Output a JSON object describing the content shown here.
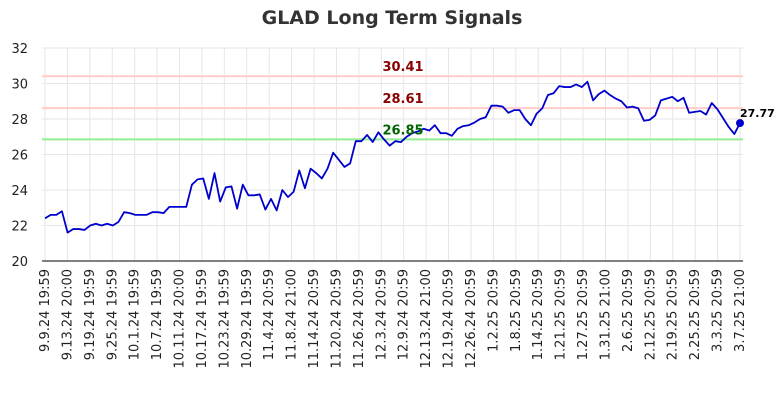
{
  "chart_data": {
    "type": "line",
    "title": "GLAD Long Term Signals",
    "xlabel": "",
    "ylabel": "",
    "ylim": [
      20,
      32
    ],
    "yticks": [
      20,
      22,
      24,
      26,
      28,
      30,
      32
    ],
    "grid": true,
    "x_tick_labels": [
      "9.9.24 19:59",
      "9.13.24 20:00",
      "9.19.24 19:59",
      "9.25.24 19:59",
      "10.1.24 19:59",
      "10.7.24 19:59",
      "10.11.24 20:00",
      "10.17.24 19:59",
      "10.23.24 19:59",
      "10.29.24 19:59",
      "11.4.24 20:59",
      "11.8.24 21:00",
      "11.14.24 20:59",
      "11.20.24 20:59",
      "11.26.24 20:59",
      "12.3.24 20:59",
      "12.9.24 20:59",
      "12.13.24 21:00",
      "12.19.24 20:59",
      "12.26.24 20:59",
      "1.2.25 20:59",
      "1.8.25 20:59",
      "1.14.25 20:59",
      "1.21.25 20:59",
      "1.27.25 20:59",
      "1.31.25 21:00",
      "2.6.25 20:59",
      "2.12.25 20:59",
      "2.19.25 20:59",
      "2.25.25 20:59",
      "3.3.25 20:59",
      "3.7.25 21:00"
    ],
    "ref_lines": [
      {
        "value": 30.41,
        "label": "30.41",
        "line_color": "#ffcccc",
        "text_color": "#8b0000"
      },
      {
        "value": 28.61,
        "label": "28.61",
        "line_color": "#ffcccc",
        "text_color": "#8b0000"
      },
      {
        "value": 26.85,
        "label": "26.85",
        "line_color": "#90ee90",
        "text_color": "#006400"
      }
    ],
    "series": [
      {
        "color": "#0000cc",
        "values": [
          22.4,
          22.6,
          22.6,
          22.8,
          21.6,
          21.8,
          21.8,
          21.75,
          22.0,
          22.1,
          22.0,
          22.1,
          22.0,
          22.2,
          22.75,
          22.7,
          22.6,
          22.6,
          22.6,
          22.75,
          22.75,
          22.7,
          23.05,
          23.05,
          23.05,
          23.05,
          24.3,
          24.6,
          24.65,
          23.5,
          24.95,
          23.35,
          24.15,
          24.2,
          22.95,
          24.3,
          23.7,
          23.7,
          23.75,
          22.9,
          23.5,
          22.85,
          24.0,
          23.6,
          23.9,
          25.1,
          24.1,
          25.2,
          24.95,
          24.65,
          25.2,
          26.1,
          25.7,
          25.3,
          25.5,
          26.75,
          26.75,
          27.1,
          26.7,
          27.25,
          26.85,
          26.5,
          26.75,
          26.7,
          27.0,
          27.2,
          27.3,
          27.45,
          27.35,
          27.65,
          27.2,
          27.2,
          27.05,
          27.45,
          27.6,
          27.65,
          27.8,
          28.0,
          28.1,
          28.75,
          28.75,
          28.7,
          28.35,
          28.5,
          28.5,
          28.0,
          27.65,
          28.3,
          28.6,
          29.35,
          29.45,
          29.85,
          29.8,
          29.8,
          29.95,
          29.8,
          30.1,
          29.05,
          29.4,
          29.6,
          29.35,
          29.15,
          29.0,
          28.65,
          28.7,
          28.6,
          27.9,
          27.95,
          28.2,
          29.05,
          29.15,
          29.25,
          29.0,
          29.2,
          28.35,
          28.4,
          28.45,
          28.25,
          28.9,
          28.55,
          28.05,
          27.55,
          27.15,
          27.77
        ]
      }
    ],
    "last_value": {
      "value": 27.77,
      "label": "27.77"
    }
  }
}
